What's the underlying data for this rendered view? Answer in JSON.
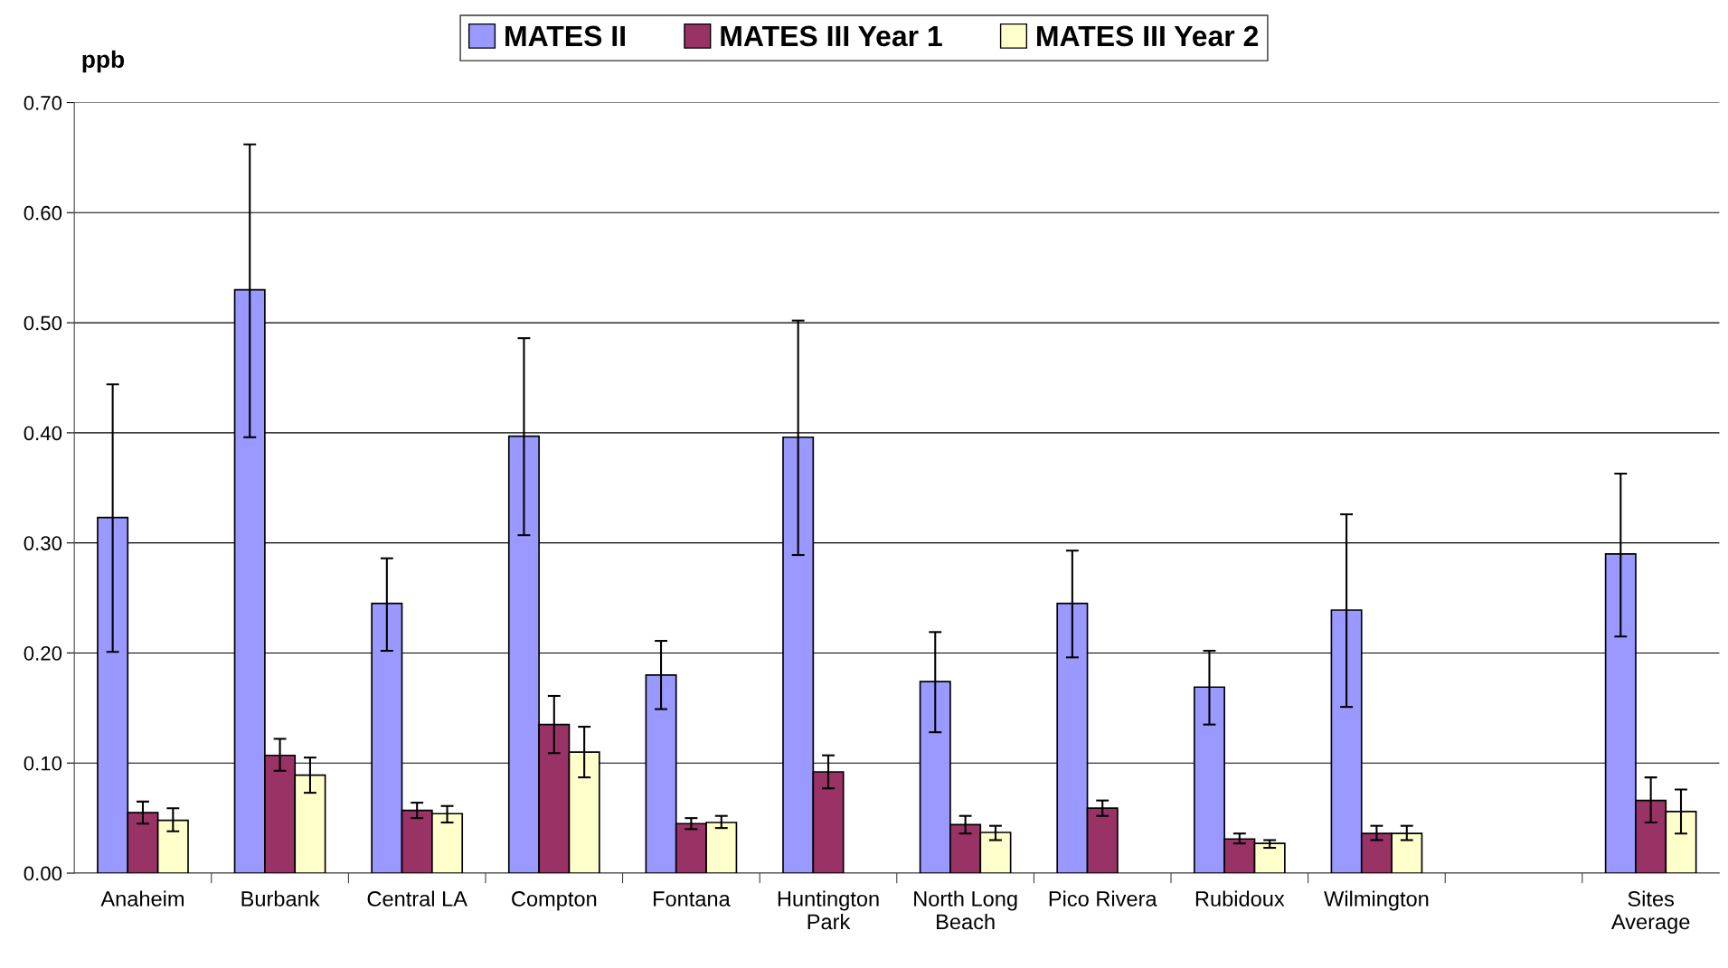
{
  "chart_data": {
    "type": "bar",
    "ylabel": "ppb",
    "categories": [
      "Anaheim",
      "Burbank",
      "Central LA",
      "Compton",
      "Fontana",
      "Huntington\nPark",
      "North Long\nBeach",
      "Pico Rivera",
      "Rubidoux",
      "Wilmington",
      null,
      "Sites\nAverage"
    ],
    "series": [
      {
        "name": "MATES II",
        "color": "#9999ff",
        "values": [
          0.323,
          0.53,
          0.245,
          0.397,
          0.18,
          0.396,
          0.174,
          0.245,
          0.169,
          0.239,
          null,
          0.29
        ],
        "errors": [
          [
            0.201,
            0.444
          ],
          [
            0.396,
            0.662
          ],
          [
            0.202,
            0.286
          ],
          [
            0.307,
            0.486
          ],
          [
            0.149,
            0.211
          ],
          [
            0.289,
            0.502
          ],
          [
            0.128,
            0.219
          ],
          [
            0.196,
            0.293
          ],
          [
            0.135,
            0.202
          ],
          [
            0.151,
            0.326
          ],
          null,
          [
            0.215,
            0.363
          ]
        ]
      },
      {
        "name": "MATES III Year 1",
        "color": "#993366",
        "values": [
          0.055,
          0.107,
          0.057,
          0.135,
          0.045,
          0.092,
          0.044,
          0.059,
          0.031,
          0.036,
          null,
          0.066
        ],
        "errors": [
          [
            0.045,
            0.065
          ],
          [
            0.093,
            0.122
          ],
          [
            0.05,
            0.064
          ],
          [
            0.109,
            0.161
          ],
          [
            0.04,
            0.05
          ],
          [
            0.077,
            0.107
          ],
          [
            0.036,
            0.052
          ],
          [
            0.052,
            0.066
          ],
          [
            0.027,
            0.036
          ],
          [
            0.03,
            0.043
          ],
          null,
          [
            0.046,
            0.087
          ]
        ]
      },
      {
        "name": "MATES III Year 2",
        "color": "#ffffcc",
        "values": [
          0.048,
          0.089,
          0.054,
          0.11,
          0.046,
          null,
          0.037,
          null,
          0.027,
          0.036,
          null,
          0.056
        ],
        "errors": [
          [
            0.038,
            0.059
          ],
          [
            0.073,
            0.105
          ],
          [
            0.046,
            0.061
          ],
          [
            0.087,
            0.133
          ],
          [
            0.041,
            0.052
          ],
          null,
          [
            0.03,
            0.043
          ],
          null,
          [
            0.023,
            0.03
          ],
          [
            0.03,
            0.043
          ],
          null,
          [
            0.036,
            0.076
          ]
        ]
      }
    ],
    "ylim": [
      0,
      0.7
    ],
    "yticks": [
      {
        "value": 0,
        "label": "0.00"
      },
      {
        "value": 0.1,
        "label": "0.10"
      },
      {
        "value": 0.2,
        "label": "0.20"
      },
      {
        "value": 0.3,
        "label": "0.30"
      },
      {
        "value": 0.4,
        "label": "0.40"
      },
      {
        "value": 0.5,
        "label": "0.50"
      },
      {
        "value": 0.6,
        "label": "0.60"
      },
      {
        "value": 0.7,
        "label": "0.70"
      }
    ],
    "grid": "y",
    "legend": "top"
  }
}
